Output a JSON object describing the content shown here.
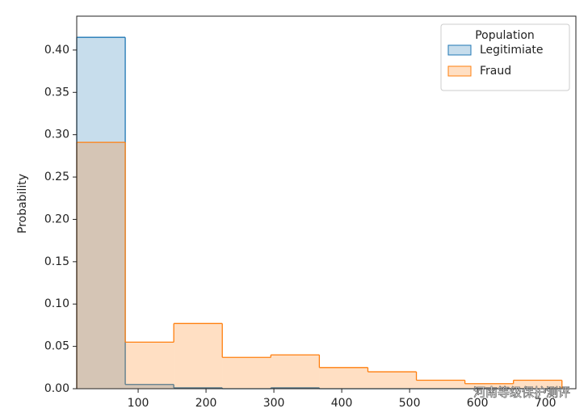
{
  "chart_data": {
    "type": "histogram",
    "y_label": "Probability",
    "bins": [
      9.5,
      81,
      152.5,
      224,
      295.5,
      367,
      438.5,
      510,
      581.5,
      653,
      724.5
    ],
    "series": [
      {
        "name": "Legitimiate",
        "color": "#1f77b4",
        "values": [
          0.415,
          0.005,
          0.001,
          0,
          0.001,
          0,
          0,
          0,
          0,
          0
        ]
      },
      {
        "name": "Fraud",
        "color": "#ff7f0e",
        "values": [
          0.291,
          0.055,
          0.077,
          0.037,
          0.04,
          0.025,
          0.02,
          0.01,
          0.006,
          0.01
        ]
      }
    ],
    "xlim": [
      9.5,
      745
    ],
    "ylim": [
      0,
      0.44
    ],
    "xticks": [
      100,
      200,
      300,
      400,
      500,
      600,
      700
    ],
    "yticks": [
      {
        "value": 0,
        "label": "0.00"
      },
      {
        "value": 0.05,
        "label": "0.05"
      },
      {
        "value": 0.1,
        "label": "0.10"
      },
      {
        "value": 0.15,
        "label": "0.15"
      },
      {
        "value": 0.2,
        "label": "0.20"
      },
      {
        "value": 0.25,
        "label": "0.25"
      },
      {
        "value": 0.3,
        "label": "0.30"
      },
      {
        "value": 0.35,
        "label": "0.35"
      },
      {
        "value": 0.4,
        "label": "0.40"
      }
    ],
    "legend_title": "Population",
    "legend_position": "upper right",
    "watermark": "河南等级保护测评"
  }
}
